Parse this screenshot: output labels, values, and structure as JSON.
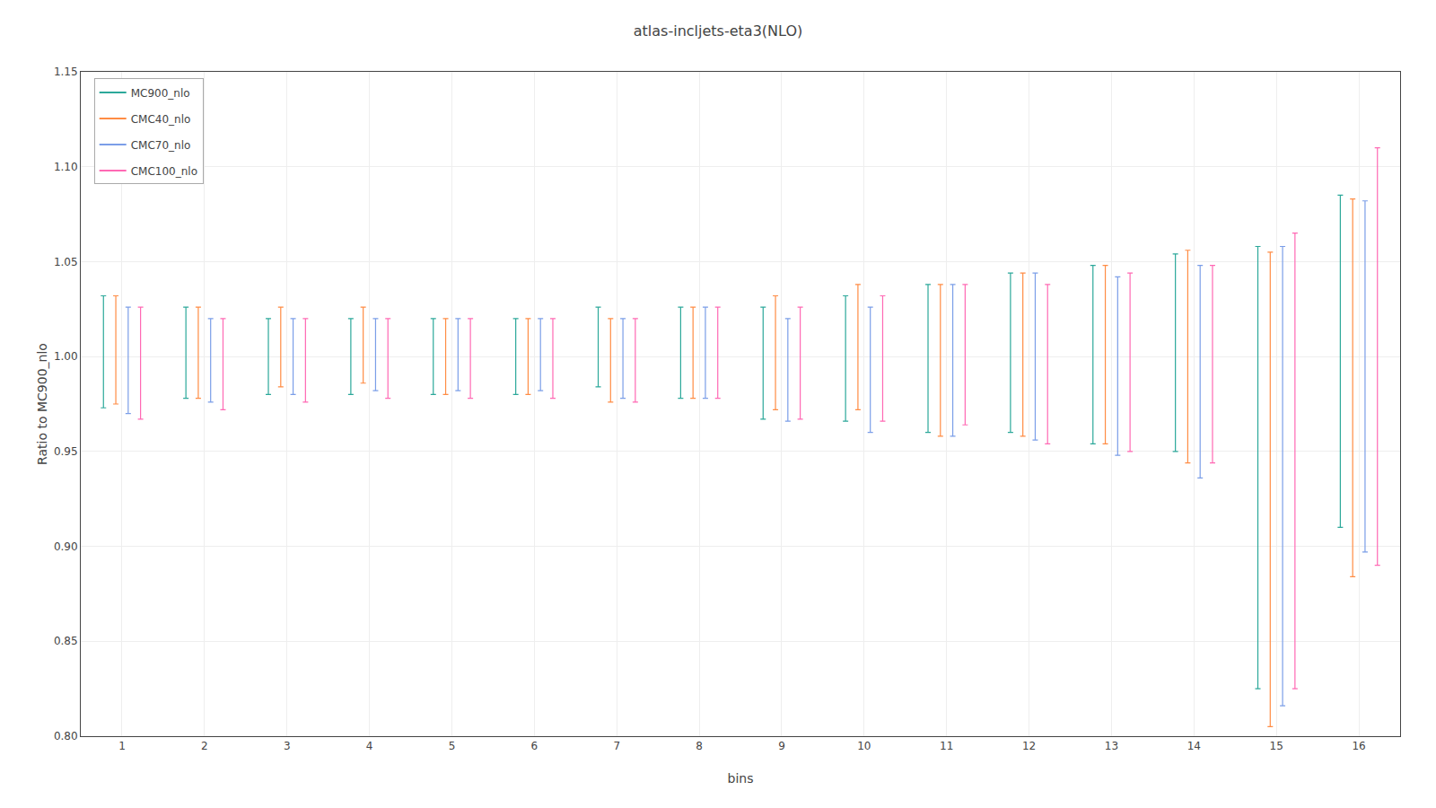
{
  "chart_data": {
    "type": "errorbar",
    "title": "atlas-incljets-eta3(NLO)",
    "xlabel": "bins",
    "ylabel": "Ratio to MC900_nlo",
    "x": [
      1,
      2,
      3,
      4,
      5,
      6,
      7,
      8,
      9,
      10,
      11,
      12,
      13,
      14,
      15,
      16
    ],
    "xlim": [
      0.5,
      16.5
    ],
    "xticks": [
      1,
      2,
      3,
      4,
      5,
      6,
      7,
      8,
      9,
      10,
      11,
      12,
      13,
      14,
      15,
      16
    ],
    "ylim": [
      0.8,
      1.15
    ],
    "yticks": [
      {
        "value": 0.8,
        "label": "0.80"
      },
      0.85,
      {
        "value": 0.9,
        "label": "0.90"
      },
      0.95,
      {
        "value": 1.0,
        "label": "1.00"
      },
      1.05,
      {
        "value": 1.1,
        "label": "1.10"
      },
      1.15
    ],
    "grid": true,
    "legend": "upper left",
    "series": [
      {
        "name": "MC900_nlo",
        "color": "#2ca89a",
        "values": [
          1.028,
          1.022,
          1.016,
          1.016,
          1.016,
          1.016,
          1.022,
          1.022,
          1.022,
          1.028,
          1.034,
          1.04,
          1.044,
          1.05,
          0.94,
          1.085
        ],
        "err_lo": [
          0.055,
          0.044,
          0.036,
          0.036,
          0.036,
          0.036,
          0.038,
          0.044,
          0.055,
          0.062,
          0.074,
          0.08,
          0.09,
          0.1,
          0.115,
          0.175
        ],
        "err_hi": [
          0.004,
          0.004,
          0.004,
          0.004,
          0.004,
          0.004,
          0.004,
          0.004,
          0.004,
          0.004,
          0.004,
          0.004,
          0.004,
          0.004,
          0.118,
          0.0
        ]
      },
      {
        "name": "CMC40_nlo",
        "color": "#ff8c44",
        "values": [
          1.028,
          1.022,
          1.022,
          1.022,
          1.016,
          1.016,
          1.016,
          1.022,
          1.028,
          1.034,
          1.034,
          1.04,
          1.044,
          1.052,
          0.928,
          1.078
        ],
        "err_lo": [
          0.053,
          0.044,
          0.038,
          0.036,
          0.036,
          0.036,
          0.04,
          0.044,
          0.056,
          0.062,
          0.076,
          0.082,
          0.09,
          0.108,
          0.123,
          0.194
        ],
        "err_hi": [
          0.004,
          0.004,
          0.004,
          0.004,
          0.004,
          0.004,
          0.004,
          0.004,
          0.004,
          0.004,
          0.004,
          0.004,
          0.004,
          0.004,
          0.127,
          0.005
        ]
      },
      {
        "name": "CMC70_nlo",
        "color": "#7b9ee8",
        "values": [
          1.022,
          1.016,
          1.016,
          1.016,
          1.016,
          1.016,
          1.016,
          1.022,
          1.016,
          1.022,
          1.034,
          1.04,
          1.038,
          1.044,
          0.94,
          1.072
        ],
        "err_lo": [
          0.052,
          0.04,
          0.036,
          0.034,
          0.034,
          0.034,
          0.038,
          0.044,
          0.05,
          0.062,
          0.076,
          0.084,
          0.09,
          0.108,
          0.124,
          0.175
        ],
        "err_hi": [
          0.004,
          0.004,
          0.004,
          0.004,
          0.004,
          0.004,
          0.004,
          0.004,
          0.004,
          0.004,
          0.004,
          0.004,
          0.004,
          0.004,
          0.118,
          0.01
        ]
      },
      {
        "name": "CMC100_nlo",
        "color": "#ff69b4",
        "values": [
          1.022,
          1.016,
          1.016,
          1.016,
          1.016,
          1.016,
          1.016,
          1.022,
          1.022,
          1.028,
          1.034,
          1.034,
          1.04,
          1.044,
          0.945,
          1.075
        ],
        "err_lo": [
          0.055,
          0.044,
          0.04,
          0.038,
          0.038,
          0.038,
          0.04,
          0.044,
          0.055,
          0.062,
          0.07,
          0.08,
          0.09,
          0.1,
          0.12,
          0.185
        ],
        "err_hi": [
          0.004,
          0.004,
          0.004,
          0.004,
          0.004,
          0.004,
          0.004,
          0.004,
          0.004,
          0.004,
          0.004,
          0.004,
          0.004,
          0.004,
          0.12,
          0.035
        ]
      }
    ]
  }
}
